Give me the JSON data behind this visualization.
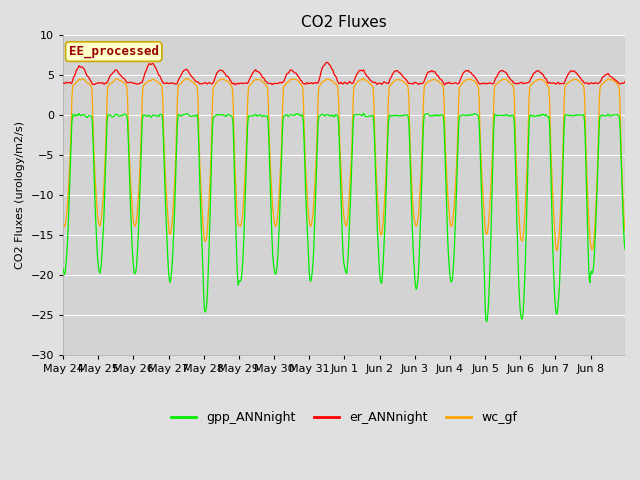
{
  "title": "CO2 Fluxes",
  "ylabel": "CO2 Fluxes (urology/m2/s)",
  "xlabel": "",
  "ylim": [
    -30,
    10
  ],
  "yticks": [
    -30,
    -25,
    -20,
    -15,
    -10,
    -5,
    0,
    5,
    10
  ],
  "fig_bg_color": "#e0e0e0",
  "plot_bg_color": "#d3d3d3",
  "legend_labels": [
    "gpp_ANNnight",
    "er_ANNnight",
    "wc_gf"
  ],
  "legend_colors": [
    "#00ee00",
    "#ff0000",
    "#ffa500"
  ],
  "text_annotation": "EE_processed",
  "text_box_facecolor": "#ffffcc",
  "text_box_edgecolor": "#ccaa00",
  "text_font_color": "#990000",
  "title_fontsize": 11,
  "legend_fontsize": 9,
  "tick_fontsize": 8,
  "axis_label_fontsize": 8
}
